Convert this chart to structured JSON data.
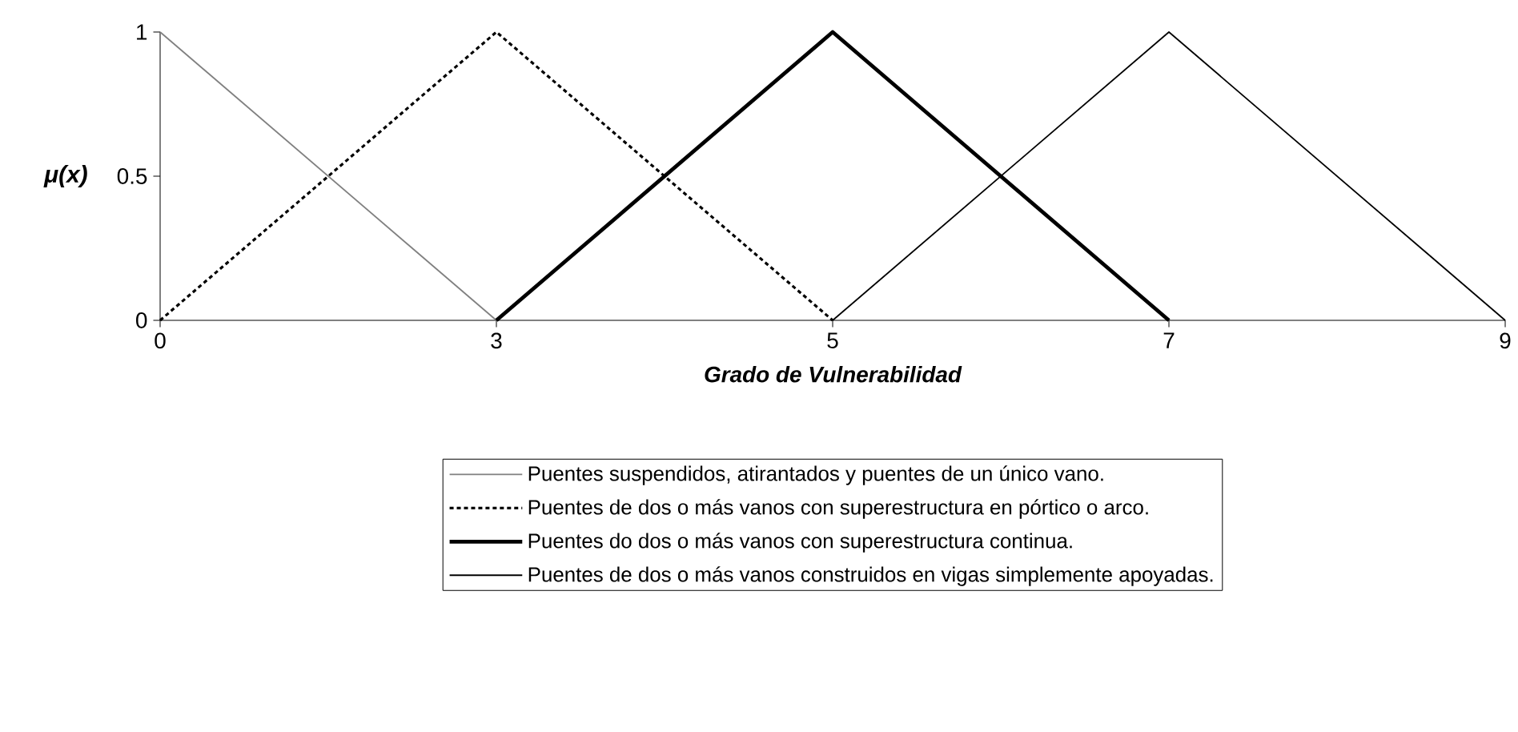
{
  "chart_data": {
    "type": "line",
    "xlabel": "Grado de Vulnerabilidad",
    "ylabel": "μ(x)",
    "categories": [
      "0",
      "3",
      "5",
      "7",
      "9"
    ],
    "series": [
      {
        "name": "Puentes suspendidos, atirantados y puentes de un único vano.",
        "color": "#808080",
        "line_style": "solid",
        "values": [
          1,
          0,
          null,
          null,
          null
        ]
      },
      {
        "name": "Puentes de dos o más vanos con superestructura en pórtico o arco.",
        "color": "#000000",
        "line_style": "dotted",
        "values": [
          0,
          1,
          0,
          null,
          null
        ]
      },
      {
        "name": "Puentes do dos o más vanos con superestructura continua.",
        "color": "#000000",
        "line_style": "solid",
        "values": [
          null,
          0,
          1,
          0,
          null
        ]
      },
      {
        "name": "Puentes de dos o más vanos construidos en vigas simplemente apoyadas.",
        "color": "#000000",
        "line_style": "solid",
        "values": [
          null,
          null,
          0,
          1,
          0
        ]
      }
    ],
    "ylim": [
      0,
      1
    ],
    "yticks": [
      0,
      0.5,
      1
    ],
    "grid": false,
    "legend": "bottom",
    "marker": "none"
  }
}
